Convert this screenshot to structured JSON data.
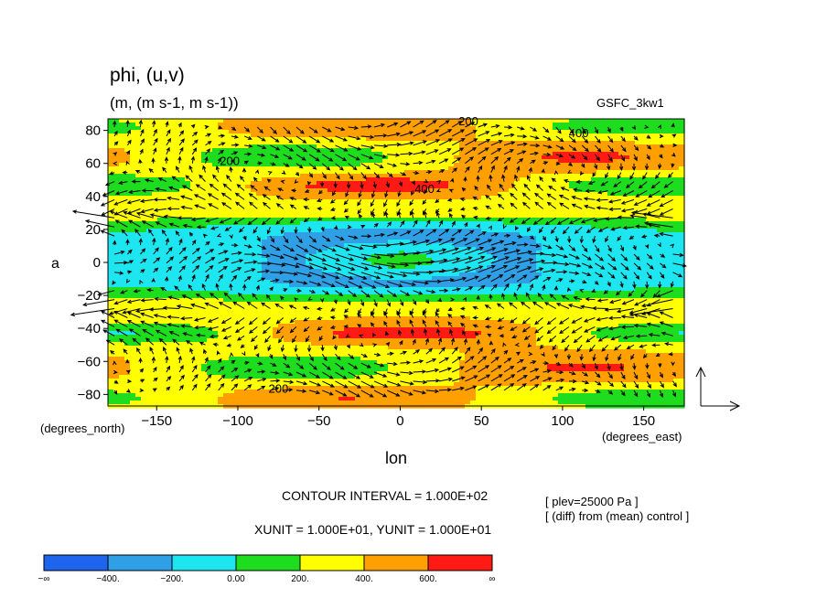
{
  "chart_data": {
    "type": "heatmap",
    "title": "phi, (u,v)",
    "subtitle": "(m, (m s-1, m s-1))",
    "dataset": "GSFC_3kw1",
    "xlabel": "lon",
    "x_unit_label": "(degrees_east)",
    "y_axis_letter": "a",
    "y_unit_label": "(degrees_north)",
    "xlim": [
      -180,
      175
    ],
    "ylim": [
      -87,
      87
    ],
    "x_ticks": [
      -150,
      -100,
      -50,
      0,
      50,
      100,
      150
    ],
    "x_tick_labels": [
      "−150",
      "−100",
      "−50",
      "0",
      "50",
      "100",
      "150"
    ],
    "y_ticks": [
      80,
      60,
      40,
      20,
      0,
      -20,
      -40,
      -60,
      -80
    ],
    "y_tick_labels": [
      "80",
      "60",
      "40",
      "20",
      "0",
      "−20",
      "−40",
      "−60",
      "−80"
    ],
    "contour_labels": [
      {
        "text": "200",
        "lon": 42,
        "lat": 83
      },
      {
        "text": "400",
        "lon": 110,
        "lat": 76
      },
      {
        "text": "200",
        "lon": -105,
        "lat": 59
      },
      {
        "text": "400",
        "lon": 15,
        "lat": 42
      },
      {
        "text": "200",
        "lon": -75,
        "lat": -79
      }
    ],
    "contour_interval_text": "CONTOUR INTERVAL = 1.000E+02",
    "unit_text": "XUNIT = 1.000E+01, YUNIT = 1.000E+01",
    "notes": [
      "[ plev=25000 Pa ]",
      "[ (diff) from (mean) control ]"
    ],
    "colorbar": {
      "colors": [
        "#1e64ec",
        "#2fa0e6",
        "#1ee6f0",
        "#1edc1e",
        "#ffff00",
        "#ffa000",
        "#ff1a14"
      ],
      "labels": [
        "−∞",
        "−400.",
        "−200.",
        "0.00",
        "200.",
        "400.",
        "600.",
        "∞"
      ]
    },
    "grid": false,
    "legend_position": "bottom"
  }
}
